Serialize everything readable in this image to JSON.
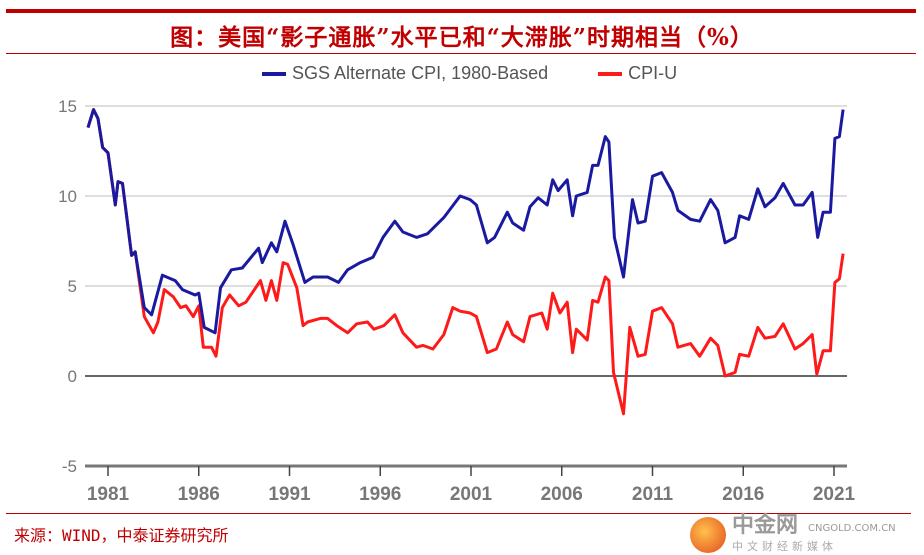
{
  "title": "图：美国“影子通胀”水平已和“大滞胀”时期相当（%）",
  "source": "来源：WIND，中泰证券研究所",
  "watermark": {
    "name": "中金网",
    "domain": "CNGOLD.COM.CN",
    "tagline": "中文财经新媒体"
  },
  "chart_data": {
    "type": "line",
    "title": "",
    "xlabel": "",
    "ylabel": "",
    "xlim": [
      1979.9,
      2021.6
    ],
    "ylim": [
      -5,
      15
    ],
    "yticks": [
      -5,
      0,
      5,
      10,
      15
    ],
    "ytick_labels": [
      "-5",
      "0",
      "5",
      "10",
      "15"
    ],
    "xticks": [
      1981,
      1986,
      1991,
      1996,
      2001,
      2006,
      2011,
      2016,
      2021
    ],
    "xtick_labels": [
      "1981",
      "1986",
      "1991",
      "1996",
      "2001",
      "2006",
      "2011",
      "2016",
      "2021"
    ],
    "grid": "horizontal",
    "legend": "top",
    "series": [
      {
        "name": "SGS Alternate CPI, 1980-Based",
        "color": "#1a1aa0",
        "x": [
          1979.9,
          1980.2,
          1980.45,
          1980.7,
          1981.0,
          1981.4,
          1981.55,
          1981.8,
          1982.3,
          1982.5,
          1983.0,
          1983.4,
          1984.0,
          1984.7,
          1985.1,
          1985.8,
          1986.0,
          1986.3,
          1986.9,
          1987.2,
          1987.8,
          1988.4,
          1989.3,
          1989.5,
          1990.0,
          1990.3,
          1990.75,
          1991.2,
          1991.85,
          1992.3,
          1993.1,
          1993.7,
          1994.2,
          1994.9,
          1995.6,
          1996.15,
          1996.8,
          1997.25,
          1998.0,
          1998.6,
          1999.5,
          2000.4,
          2000.95,
          2001.3,
          2001.9,
          2002.3,
          2003.0,
          2003.3,
          2003.9,
          2004.25,
          2004.7,
          2005.2,
          2005.5,
          2005.8,
          2006.3,
          2006.6,
          2006.8,
          2007.4,
          2007.7,
          2008.0,
          2008.4,
          2008.6,
          2008.9,
          2009.4,
          2009.9,
          2010.2,
          2010.6,
          2011.0,
          2011.5,
          2012.1,
          2012.4,
          2013.1,
          2013.6,
          2014.2,
          2014.6,
          2015.0,
          2015.55,
          2015.8,
          2016.3,
          2016.8,
          2017.2,
          2017.75,
          2018.2,
          2018.85,
          2019.3,
          2019.8,
          2020.1,
          2020.4,
          2020.8,
          2021.05,
          2021.3,
          2021.5
        ],
        "values": [
          13.8,
          14.8,
          14.3,
          12.7,
          12.4,
          9.5,
          10.8,
          10.7,
          6.7,
          6.9,
          3.8,
          3.4,
          5.6,
          5.3,
          4.8,
          4.5,
          4.6,
          2.7,
          2.4,
          4.9,
          5.9,
          6.0,
          7.1,
          6.3,
          7.4,
          6.9,
          8.6,
          7.3,
          5.2,
          5.5,
          5.5,
          5.2,
          5.9,
          6.3,
          6.6,
          7.7,
          8.6,
          8.0,
          7.7,
          7.9,
          8.8,
          10.0,
          9.8,
          9.5,
          7.4,
          7.7,
          9.1,
          8.5,
          8.1,
          9.4,
          9.9,
          9.5,
          10.9,
          10.3,
          10.9,
          8.9,
          10.0,
          10.2,
          11.7,
          11.7,
          13.3,
          13.0,
          7.7,
          5.5,
          9.8,
          8.5,
          8.6,
          11.1,
          11.3,
          10.2,
          9.2,
          8.7,
          8.6,
          9.8,
          9.2,
          7.4,
          7.7,
          8.9,
          8.7,
          10.4,
          9.4,
          9.9,
          10.7,
          9.5,
          9.5,
          10.2,
          7.7,
          9.1,
          9.1,
          13.2,
          13.3,
          14.8
        ]
      },
      {
        "name": "CPI-U",
        "color": "#ff1a1a",
        "x": [
          1979.9,
          1980.2,
          1980.45,
          1980.7,
          1981.0,
          1981.4,
          1981.55,
          1981.8,
          1982.3,
          1982.5,
          1983.0,
          1983.5,
          1983.75,
          1984.1,
          1984.6,
          1985.0,
          1985.3,
          1985.7,
          1986.0,
          1986.25,
          1986.7,
          1986.95,
          1987.3,
          1987.7,
          1988.2,
          1988.6,
          1989.4,
          1989.7,
          1990.0,
          1990.3,
          1990.65,
          1990.9,
          1991.4,
          1991.75,
          1992.0,
          1992.7,
          1993.1,
          1993.6,
          1994.2,
          1994.7,
          1995.3,
          1995.65,
          1996.2,
          1996.8,
          1997.25,
          1998.0,
          1998.35,
          1998.9,
          1999.5,
          2000.0,
          2000.4,
          2000.95,
          2001.3,
          2001.9,
          2002.4,
          2003.0,
          2003.3,
          2003.9,
          2004.25,
          2004.9,
          2005.2,
          2005.5,
          2005.9,
          2006.3,
          2006.6,
          2006.8,
          2007.4,
          2007.7,
          2008.0,
          2008.4,
          2008.6,
          2008.85,
          2009.4,
          2009.75,
          2010.2,
          2010.6,
          2011.0,
          2011.5,
          2012.1,
          2012.4,
          2013.1,
          2013.6,
          2014.2,
          2014.6,
          2015.0,
          2015.55,
          2015.8,
          2016.3,
          2016.8,
          2017.2,
          2017.75,
          2018.2,
          2018.85,
          2019.3,
          2019.8,
          2020.05,
          2020.4,
          2020.8,
          2021.05,
          2021.3,
          2021.5
        ],
        "values": [
          13.8,
          14.8,
          14.3,
          12.7,
          12.4,
          9.5,
          10.8,
          10.7,
          6.7,
          6.9,
          3.3,
          2.4,
          3.0,
          4.8,
          4.4,
          3.8,
          3.9,
          3.3,
          3.9,
          1.6,
          1.6,
          1.1,
          3.8,
          4.5,
          3.9,
          4.1,
          5.3,
          4.2,
          5.3,
          4.2,
          6.3,
          6.2,
          4.9,
          2.8,
          3.0,
          3.2,
          3.2,
          2.8,
          2.4,
          2.9,
          3.0,
          2.6,
          2.8,
          3.4,
          2.4,
          1.6,
          1.7,
          1.5,
          2.3,
          3.8,
          3.6,
          3.5,
          3.3,
          1.3,
          1.5,
          3.0,
          2.3,
          1.9,
          3.3,
          3.5,
          2.6,
          4.6,
          3.5,
          4.1,
          1.3,
          2.6,
          2.0,
          4.2,
          4.1,
          5.5,
          5.3,
          0.2,
          -2.1,
          2.7,
          1.1,
          1.2,
          3.6,
          3.8,
          2.9,
          1.6,
          1.8,
          1.1,
          2.1,
          1.7,
          0.0,
          0.2,
          1.2,
          1.1,
          2.7,
          2.1,
          2.2,
          2.9,
          1.5,
          1.8,
          2.3,
          0.1,
          1.4,
          1.4,
          5.2,
          5.4,
          6.8
        ]
      }
    ]
  }
}
